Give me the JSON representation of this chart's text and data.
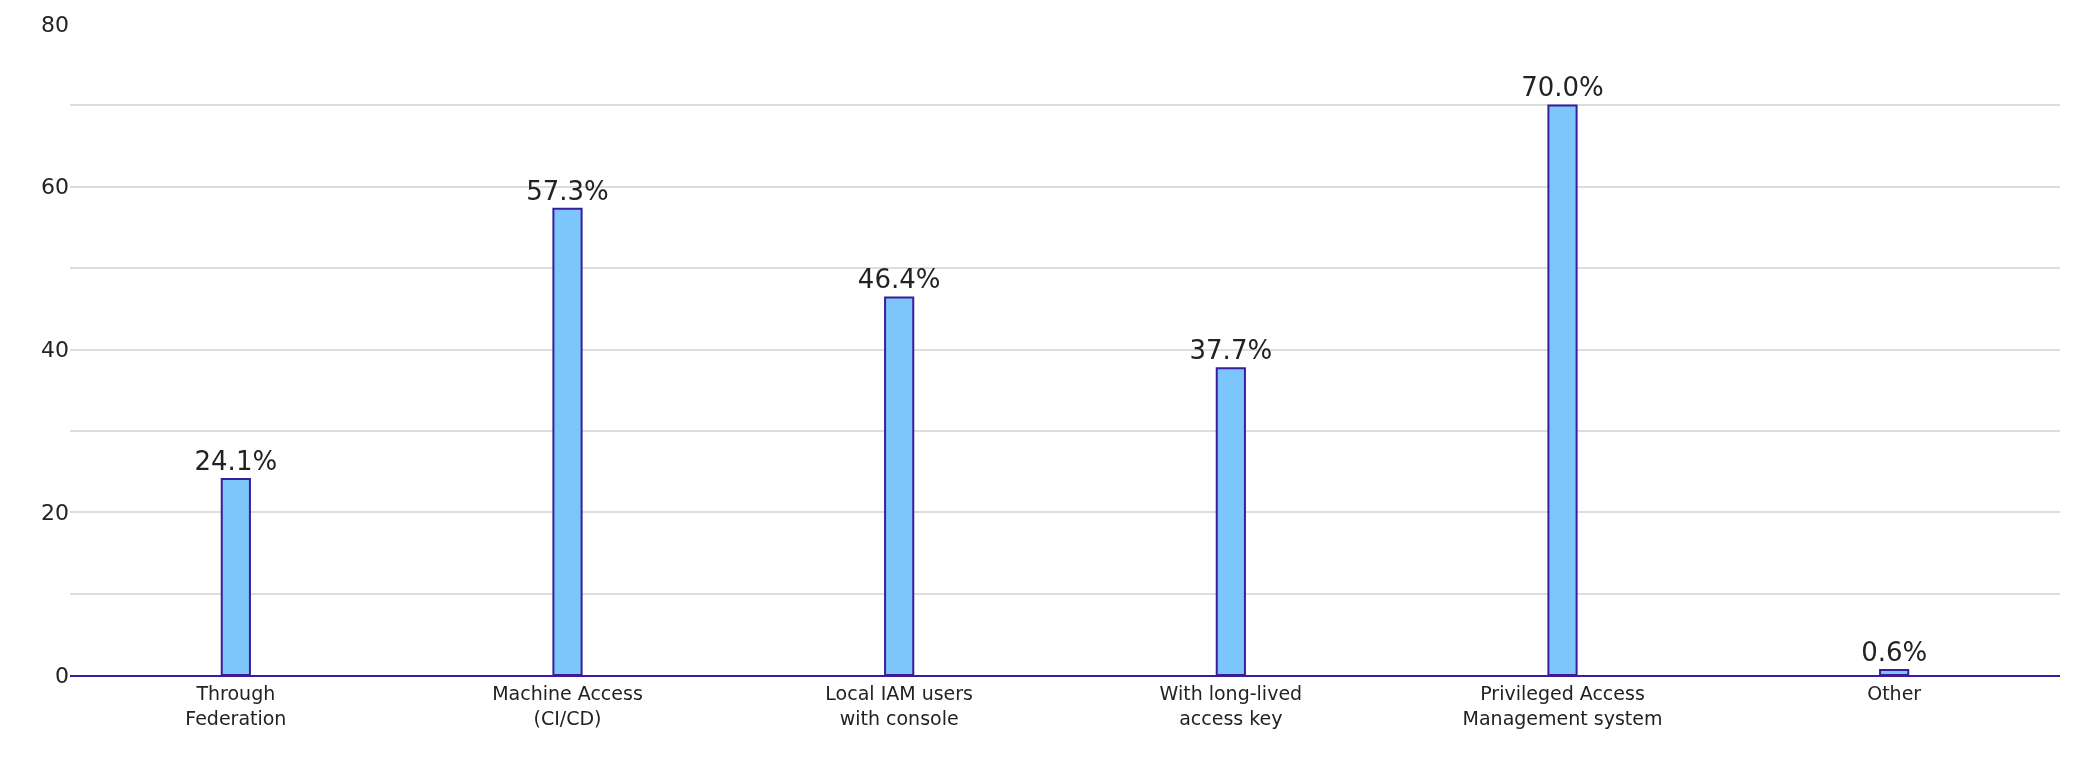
{
  "chart_data": {
    "type": "bar",
    "categories": [
      "Through\nFederation",
      "Machine Access\n(CI/CD)",
      "Local IAM users\nwith console",
      "With long-lived\naccess key",
      "Privileged Access\nManagement system",
      "Other"
    ],
    "values": [
      24.1,
      57.3,
      46.4,
      37.7,
      70.0,
      0.6
    ],
    "value_labels": [
      "24.1%",
      "57.3%",
      "46.4%",
      "37.7%",
      "70.0%",
      "0.6%"
    ],
    "color": "#7dc6fb",
    "ylim": [
      0,
      80
    ],
    "yticks": [
      0,
      {
        "value": 10,
        "label": null
      },
      20,
      {
        "value": 30,
        "label": null
      },
      40,
      {
        "value": 50,
        "label": null
      },
      60,
      {
        "value": 70,
        "label": null
      },
      80
    ],
    "grid": "y",
    "legend": false
  }
}
